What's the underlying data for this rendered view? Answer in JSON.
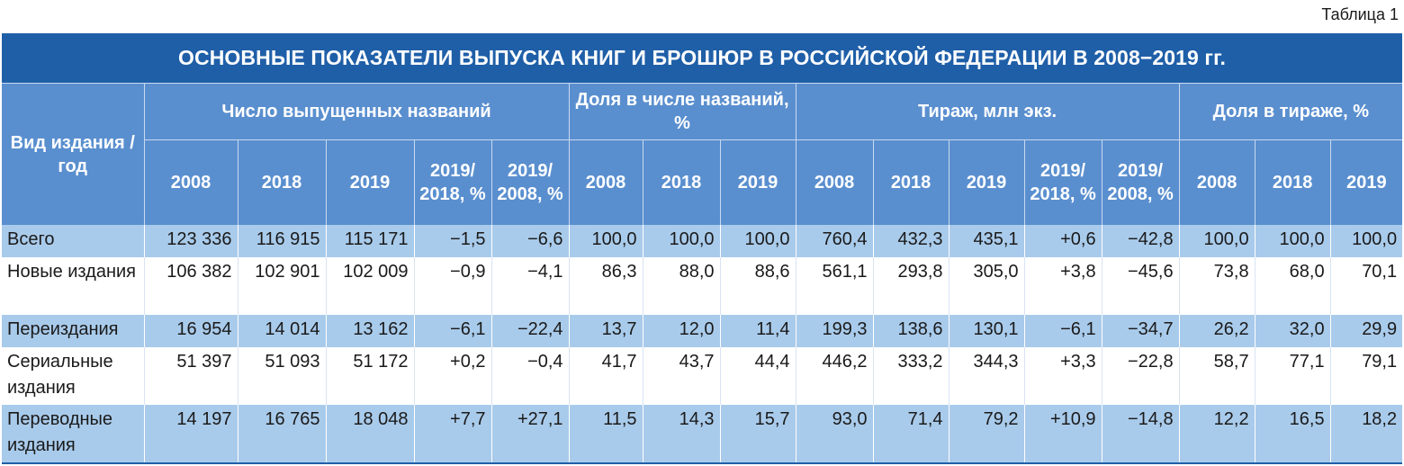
{
  "table_label": "Таблица 1",
  "title": "ОСНОВНЫЕ ПОКАЗАТЕЛИ ВЫПУСКА КНИГ И БРОШЮР В РОССИЙСКОЙ ФЕДЕРАЦИИ В 2008−2019 гг.",
  "header": {
    "row_header": "Вид издания / год",
    "groups": [
      "Число выпущенных названий",
      "Доля в числе названий, %",
      "Тираж, млн экз.",
      "Доля в тираже, %"
    ],
    "sub": {
      "titles": [
        "2008",
        "2018",
        "2019",
        "2019/ 2018, %",
        "2019/ 2008, %"
      ],
      "titles_share": [
        "2008",
        "2018",
        "2019"
      ],
      "print": [
        "2008",
        "2018",
        "2019",
        "2019/ 2018, %",
        "2019/ 2008, %"
      ],
      "print_share": [
        "2008",
        "2018",
        "2019"
      ]
    }
  },
  "rows": [
    {
      "name": "Всего",
      "values": [
        "123 336",
        "116 915",
        "115 171",
        "−1,5",
        "−6,6",
        "100,0",
        "100,0",
        "100,0",
        "760,4",
        "432,3",
        "435,1",
        "+0,6",
        "−42,8",
        "100,0",
        "100,0",
        "100,0"
      ]
    },
    {
      "name": "Новые издания",
      "values": [
        "106 382",
        "102 901",
        "102 009",
        "−0,9",
        "−4,1",
        "86,3",
        "88,0",
        "88,6",
        "561,1",
        "293,8",
        "305,0",
        "+3,8",
        "−45,6",
        "73,8",
        "68,0",
        "70,1"
      ]
    },
    {
      "name": "Переиздания",
      "values": [
        "16 954",
        "14 014",
        "13 162",
        "−6,1",
        "−22,4",
        "13,7",
        "12,0",
        "11,4",
        "199,3",
        "138,6",
        "130,1",
        "−6,1",
        "−34,7",
        "26,2",
        "32,0",
        "29,9"
      ]
    },
    {
      "name": "Сериальные издания",
      "values": [
        "51 397",
        "51 093",
        "51 172",
        "+0,2",
        "−0,4",
        "41,7",
        "43,7",
        "44,4",
        "446,2",
        "333,2",
        "344,3",
        "+3,3",
        "−22,8",
        "58,7",
        "77,1",
        "79,1"
      ]
    },
    {
      "name": "Переводные издания",
      "values": [
        "14 197",
        "16 765",
        "18 048",
        "+7,7",
        "+27,1",
        "11,5",
        "14,3",
        "15,7",
        "93,0",
        "71,4",
        "79,2",
        "+10,9",
        "−14,8",
        "12,2",
        "16,5",
        "18,2"
      ]
    }
  ]
}
